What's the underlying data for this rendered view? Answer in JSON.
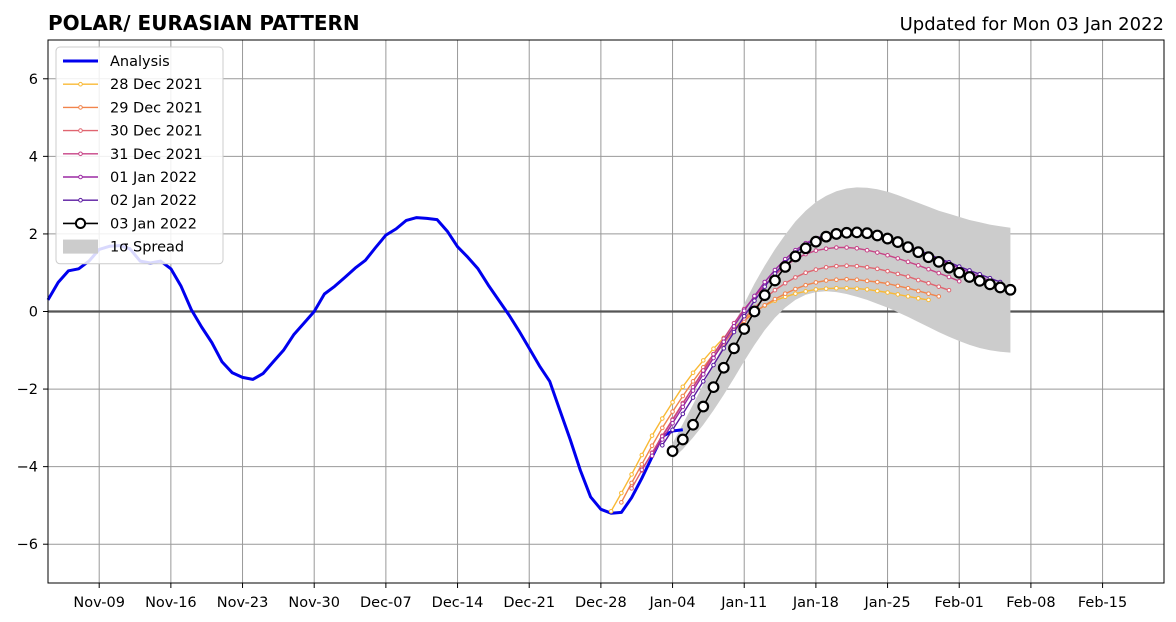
{
  "chart_data": {
    "type": "line",
    "title": "POLAR/ EURASIAN  PATTERN",
    "subtitle": "Updated for Mon 03 Jan 2022",
    "xlabel": "",
    "ylabel": "",
    "xlim": [
      "2021-11-04",
      "2022-02-21"
    ],
    "ylim": [
      -7,
      7
    ],
    "x_ticks": [
      {
        "date": "2021-11-09",
        "label": "Nov-09"
      },
      {
        "date": "2021-11-16",
        "label": "Nov-16"
      },
      {
        "date": "2021-11-23",
        "label": "Nov-23"
      },
      {
        "date": "2021-11-30",
        "label": "Nov-30"
      },
      {
        "date": "2021-12-07",
        "label": "Dec-07"
      },
      {
        "date": "2021-12-14",
        "label": "Dec-14"
      },
      {
        "date": "2021-12-21",
        "label": "Dec-21"
      },
      {
        "date": "2021-12-28",
        "label": "Dec-28"
      },
      {
        "date": "2022-01-04",
        "label": "Jan-04"
      },
      {
        "date": "2022-01-11",
        "label": "Jan-11"
      },
      {
        "date": "2022-01-18",
        "label": "Jan-18"
      },
      {
        "date": "2022-01-25",
        "label": "Jan-25"
      },
      {
        "date": "2022-02-01",
        "label": "Feb-01"
      },
      {
        "date": "2022-02-08",
        "label": "Feb-08"
      },
      {
        "date": "2022-02-15",
        "label": "Feb-15"
      }
    ],
    "y_ticks": [
      {
        "value": -6,
        "label": "−6"
      },
      {
        "value": -4,
        "label": "−4"
      },
      {
        "value": -2,
        "label": "−2"
      },
      {
        "value": 0,
        "label": "0"
      },
      {
        "value": 2,
        "label": "2"
      },
      {
        "value": 4,
        "label": "4"
      },
      {
        "value": 6,
        "label": "6"
      }
    ],
    "grid": true,
    "legend_position": "top-left",
    "analysis": {
      "name": "Analysis",
      "color": "#0000ee",
      "start_date": "2021-11-04",
      "values": [
        0.3,
        0.75,
        1.05,
        1.1,
        1.3,
        1.6,
        1.68,
        1.7,
        1.62,
        1.3,
        1.25,
        1.3,
        1.1,
        0.65,
        0.05,
        -0.4,
        -0.8,
        -1.3,
        -1.58,
        -1.7,
        -1.75,
        -1.6,
        -1.3,
        -1.0,
        -0.6,
        -0.3,
        0.0,
        0.45,
        0.65,
        0.88,
        1.12,
        1.32,
        1.65,
        1.97,
        2.13,
        2.35,
        2.42,
        2.4,
        2.37,
        2.07,
        1.67,
        1.4,
        1.1,
        0.68,
        0.3,
        -0.08,
        -0.5,
        -0.95,
        -1.4,
        -1.8,
        -2.55,
        -3.3,
        -4.1,
        -4.78,
        -5.1,
        -5.2,
        -5.18,
        -4.8,
        -4.3,
        -3.75,
        -3.22,
        -3.08,
        -3.05
      ]
    },
    "spread": {
      "name": "1σ Spread",
      "color": "#cccccc",
      "start_date": "2022-01-04",
      "upper": [
        -3.4,
        -2.9,
        -2.4,
        -1.88,
        -1.36,
        -0.84,
        -0.32,
        0.2,
        0.72,
        1.18,
        1.6,
        1.98,
        2.32,
        2.6,
        2.82,
        2.98,
        3.1,
        3.17,
        3.2,
        3.19,
        3.15,
        3.09,
        3.0,
        2.9,
        2.8,
        2.7,
        2.6,
        2.52,
        2.44,
        2.36,
        2.3,
        2.24,
        2.2,
        2.16
      ],
      "lower": [
        -3.8,
        -3.55,
        -3.25,
        -2.92,
        -2.55,
        -2.15,
        -1.72,
        -1.28,
        -0.86,
        -0.48,
        -0.16,
        0.1,
        0.3,
        0.43,
        0.5,
        0.52,
        0.5,
        0.45,
        0.38,
        0.3,
        0.2,
        0.1,
        -0.02,
        -0.14,
        -0.27,
        -0.4,
        -0.53,
        -0.65,
        -0.76,
        -0.86,
        -0.94,
        -1.0,
        -1.04,
        -1.06
      ]
    },
    "series": [
      {
        "name": "28 Dec 2021",
        "color": "#f9b935",
        "start_date": "2021-12-29",
        "values": [
          -5.15,
          -4.68,
          -4.2,
          -3.7,
          -3.2,
          -2.76,
          -2.34,
          -1.94,
          -1.58,
          -1.26,
          -0.96,
          -0.68,
          -0.42,
          -0.2,
          0.0,
          0.15,
          0.28,
          0.38,
          0.46,
          0.52,
          0.57,
          0.59,
          0.6,
          0.6,
          0.59,
          0.57,
          0.53,
          0.49,
          0.44,
          0.39,
          0.34,
          0.3
        ]
      },
      {
        "name": "29 Dec 2021",
        "color": "#f1844c",
        "start_date": "2021-12-30",
        "values": [
          -4.92,
          -4.42,
          -3.94,
          -3.46,
          -3.0,
          -2.58,
          -2.18,
          -1.8,
          -1.44,
          -1.1,
          -0.78,
          -0.5,
          -0.24,
          -0.02,
          0.16,
          0.32,
          0.46,
          0.58,
          0.68,
          0.75,
          0.8,
          0.82,
          0.83,
          0.82,
          0.79,
          0.76,
          0.72,
          0.66,
          0.6,
          0.53,
          0.46,
          0.39
        ]
      },
      {
        "name": "30 Dec 2021",
        "color": "#e06570",
        "start_date": "2021-12-31",
        "values": [
          -4.56,
          -4.1,
          -3.64,
          -3.2,
          -2.78,
          -2.36,
          -1.96,
          -1.56,
          -1.18,
          -0.82,
          -0.48,
          -0.18,
          0.1,
          0.34,
          0.55,
          0.73,
          0.88,
          1.0,
          1.08,
          1.14,
          1.17,
          1.18,
          1.17,
          1.14,
          1.1,
          1.04,
          0.97,
          0.9,
          0.81,
          0.73,
          0.64,
          0.55
        ]
      },
      {
        "name": "31 Dec 2021",
        "color": "#c74386",
        "start_date": "2022-01-01",
        "values": [
          -4.08,
          -3.65,
          -3.22,
          -2.8,
          -2.38,
          -1.95,
          -1.52,
          -1.1,
          -0.7,
          -0.3,
          0.06,
          0.38,
          0.68,
          0.95,
          1.17,
          1.35,
          1.48,
          1.57,
          1.62,
          1.65,
          1.65,
          1.63,
          1.58,
          1.52,
          1.45,
          1.37,
          1.28,
          1.19,
          1.09,
          0.99,
          0.89,
          0.78
        ]
      },
      {
        "name": "01 Jan 2022",
        "color": "#9b2aa3",
        "start_date": "2022-01-02",
        "values": [
          -3.72,
          -3.3,
          -2.88,
          -2.46,
          -2.04,
          -1.62,
          -1.2,
          -0.78,
          -0.38,
          0.02,
          0.4,
          0.76,
          1.07,
          1.35,
          1.58,
          1.76,
          1.89,
          1.97,
          2.01,
          2.02,
          2.0,
          1.96,
          1.9,
          1.82,
          1.74,
          1.65,
          1.55,
          1.45,
          1.34,
          1.23,
          1.12,
          1.01,
          0.9,
          0.79
        ]
      },
      {
        "name": "02 Jan 2022",
        "color": "#5a1aa0",
        "start_date": "2022-01-03",
        "values": [
          -3.45,
          -3.05,
          -2.64,
          -2.22,
          -1.8,
          -1.38,
          -0.95,
          -0.53,
          -0.12,
          0.28,
          0.64,
          0.98,
          1.27,
          1.52,
          1.72,
          1.87,
          1.97,
          2.03,
          2.05,
          2.04,
          2.01,
          1.95,
          1.87,
          1.78,
          1.69,
          1.59,
          1.48,
          1.37,
          1.27,
          1.16,
          1.06,
          0.96,
          0.86,
          0.76
        ]
      },
      {
        "name": "03 Jan 2022",
        "color": "#000000",
        "start_date": "2022-01-04",
        "values": [
          -3.6,
          -3.3,
          -2.92,
          -2.45,
          -1.95,
          -1.45,
          -0.95,
          -0.45,
          0.0,
          0.42,
          0.8,
          1.15,
          1.42,
          1.63,
          1.8,
          1.93,
          2.0,
          2.03,
          2.04,
          2.02,
          1.96,
          1.88,
          1.79,
          1.66,
          1.53,
          1.4,
          1.28,
          1.13,
          1.0,
          0.89,
          0.79,
          0.7,
          0.62,
          0.56
        ]
      }
    ]
  }
}
